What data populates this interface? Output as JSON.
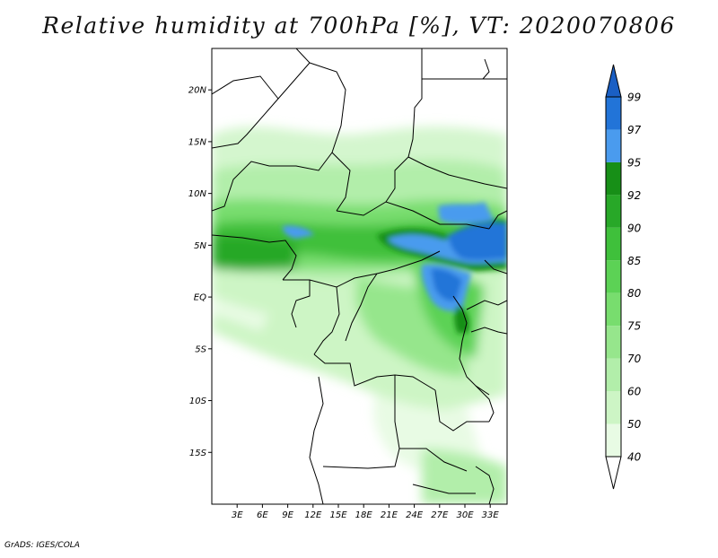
{
  "title": "Relative humidity at 700hPa [%], VT: 2020070806",
  "credit": "GrADS: IGES/COLA",
  "map": {
    "lon_range": [
      0,
      35
    ],
    "lat_range": [
      -20,
      24
    ],
    "lat_ticks": [
      {
        "value": 20,
        "label": "20N"
      },
      {
        "value": 15,
        "label": "15N"
      },
      {
        "value": 10,
        "label": "10N"
      },
      {
        "value": 5,
        "label": "5N"
      },
      {
        "value": 0,
        "label": "EQ"
      },
      {
        "value": -5,
        "label": "5S"
      },
      {
        "value": -10,
        "label": "10S"
      },
      {
        "value": -15,
        "label": "15S"
      }
    ],
    "lon_ticks": [
      {
        "value": 3,
        "label": "3E"
      },
      {
        "value": 6,
        "label": "6E"
      },
      {
        "value": 9,
        "label": "9E"
      },
      {
        "value": 12,
        "label": "12E"
      },
      {
        "value": 15,
        "label": "15E"
      },
      {
        "value": 18,
        "label": "18E"
      },
      {
        "value": 21,
        "label": "21E"
      },
      {
        "value": 24,
        "label": "24E"
      },
      {
        "value": 27,
        "label": "27E"
      },
      {
        "value": 30,
        "label": "30E"
      },
      {
        "value": 33,
        "label": "33E"
      }
    ]
  },
  "colorbar": {
    "levels": [
      {
        "label": "40",
        "color": "#ffffff"
      },
      {
        "label": "50",
        "color": "#e8fbe4"
      },
      {
        "label": "60",
        "color": "#cdf5c5"
      },
      {
        "label": "70",
        "color": "#b2eeaa"
      },
      {
        "label": "75",
        "color": "#96e68c"
      },
      {
        "label": "80",
        "color": "#78dd6e"
      },
      {
        "label": "85",
        "color": "#5cd255"
      },
      {
        "label": "90",
        "color": "#3fc03b"
      },
      {
        "label": "92",
        "color": "#28a828"
      },
      {
        "label": "95",
        "color": "#178f17"
      },
      {
        "label": "97",
        "color": "#4a9bee"
      },
      {
        "label": "99",
        "color": "#2274d8"
      }
    ],
    "top_arrow_color": "#1a5fc4",
    "bottom_arrow_color": "#ffffff"
  }
}
